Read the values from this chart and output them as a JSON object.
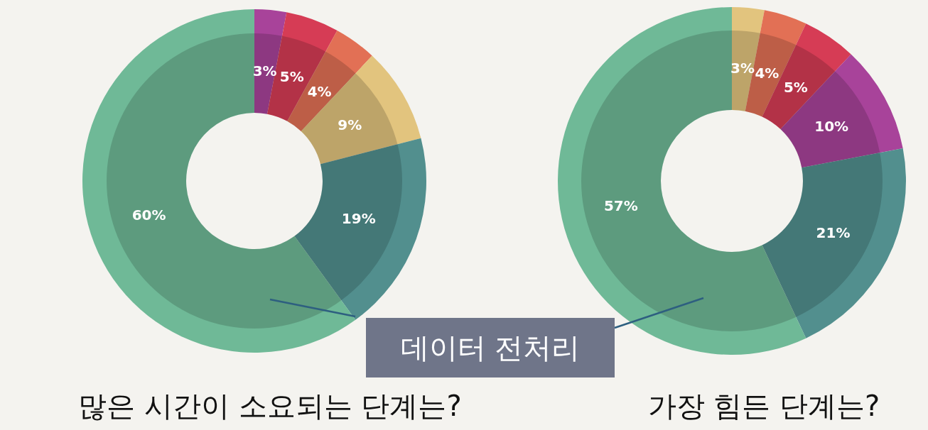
{
  "chart_data": [
    {
      "type": "donut",
      "title": "많은 시간이 소요되는 단계는?",
      "categories": [
        null,
        null,
        null,
        null,
        null,
        "데이터 전처리"
      ],
      "values": [
        3,
        5,
        4,
        9,
        19,
        60
      ],
      "value_labels": [
        "3%",
        "5%",
        "4%",
        "9%",
        "19%",
        "60%"
      ],
      "colors": [
        "#a8439a",
        "#d63c55",
        "#e27055",
        "#e2c47e",
        "#528f8e",
        "#6fb997"
      ]
    },
    {
      "type": "donut",
      "title": "가장 힘든 단계는?",
      "categories": [
        null,
        null,
        null,
        null,
        null,
        null
      ],
      "values": [
        3,
        4,
        5,
        10,
        21,
        57
      ],
      "value_labels": [
        "3%",
        "4%",
        "5%",
        "10%",
        "21%",
        "57%"
      ],
      "colors": [
        "#e2c47e",
        "#e27055",
        "#d63c55",
        "#a8439a",
        "#528f8e",
        "#6fb997"
      ]
    }
  ]
}
